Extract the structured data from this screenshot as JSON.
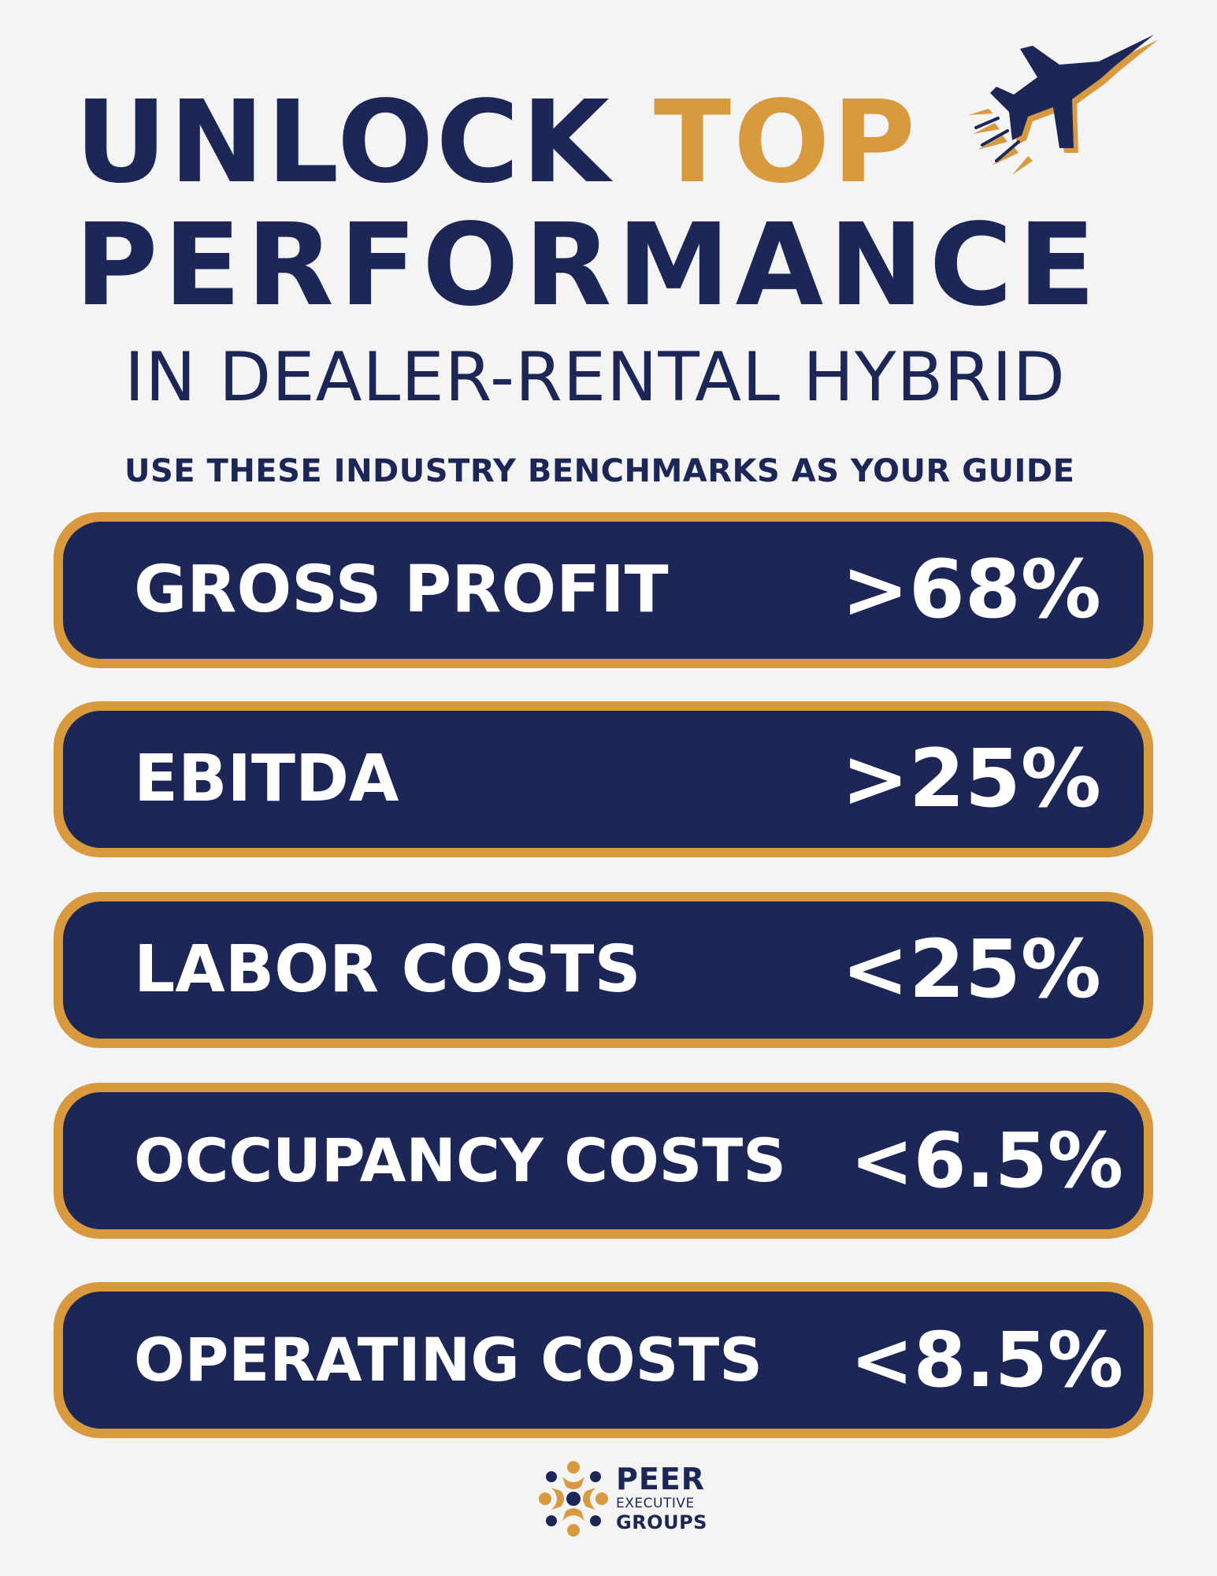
{
  "header": {
    "title_word1": "UNLOCK",
    "title_word2": "TOP",
    "title_line2": "PERFORMANCE",
    "subtitle": "IN DEALER-RENTAL HYBRID",
    "tagline": "USE THESE INDUSTRY BENCHMARKS AS YOUR GUIDE",
    "icon": "fighter-jet-icon"
  },
  "benchmarks": [
    {
      "label": "GROSS PROFIT",
      "value": ">68%"
    },
    {
      "label": "EBITDA",
      "value": ">25%"
    },
    {
      "label": "LABOR COSTS",
      "value": "<25%"
    },
    {
      "label": "OCCUPANCY COSTS",
      "value": "<6.5%"
    },
    {
      "label": "OPERATING COSTS",
      "value": "<8.5%"
    }
  ],
  "logo": {
    "line1": "PEER",
    "line2": "EXECUTIVE",
    "line3": "GROUPS",
    "icon": "peer-group-people-icon"
  },
  "colors": {
    "navy": "#1c2657",
    "gold": "#d99a3f",
    "background": "#f4f4f4",
    "text_light": "#ffffff"
  }
}
